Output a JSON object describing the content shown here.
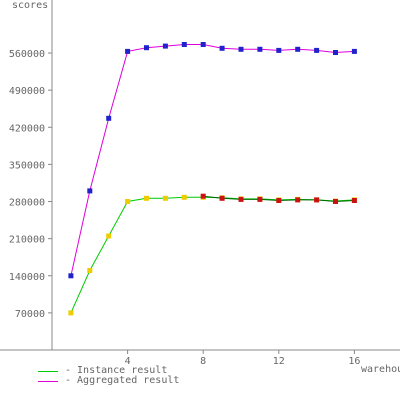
{
  "chart_data": {
    "type": "line",
    "ylabel": "scores",
    "xlabel": "warehouses",
    "x": [
      1,
      2,
      3,
      4,
      5,
      6,
      7,
      8,
      9,
      10,
      11,
      12,
      13,
      14,
      15,
      16
    ],
    "xticks": [
      "4",
      "8",
      "12",
      "16"
    ],
    "xtick_values": [
      4,
      8,
      12,
      16
    ],
    "yticks": [
      "70000",
      "140000",
      "210000",
      "280000",
      "350000",
      "420000",
      "490000",
      "560000"
    ],
    "ytick_values": [
      70000,
      140000,
      210000,
      280000,
      350000,
      420000,
      490000,
      560000
    ],
    "xlim": [
      0,
      18
    ],
    "ylim": [
      0,
      660000
    ],
    "grid": false,
    "legend_position": "bottom-left",
    "series": [
      {
        "name": "Instance result",
        "color": "#00cc00",
        "marker_color": "#eecc00",
        "values": [
          70000,
          150000,
          215000,
          280000,
          286000,
          286000,
          288000,
          288000,
          287000,
          285000,
          285000,
          283000,
          284000,
          283000,
          281000,
          283000
        ]
      },
      {
        "name": "Aggregated result",
        "color": "#dd00dd",
        "marker_color": "#2222cc",
        "values": [
          140000,
          300000,
          437000,
          563000,
          570000,
          573000,
          576000,
          576000,
          569000,
          567000,
          567000,
          565000,
          567000,
          565000,
          561000,
          563000
        ]
      },
      {
        "name": "",
        "color": "#006600",
        "marker_color": "#cc1111",
        "values": [
          null,
          null,
          null,
          null,
          null,
          null,
          null,
          290000,
          286000,
          284000,
          284000,
          282000,
          283000,
          283000,
          280000,
          282000
        ]
      }
    ]
  },
  "legend": {
    "items": [
      {
        "label": "- Instance result",
        "color": "#00cc00"
      },
      {
        "label": "- Aggregated result",
        "color": "#dd00dd"
      }
    ]
  }
}
